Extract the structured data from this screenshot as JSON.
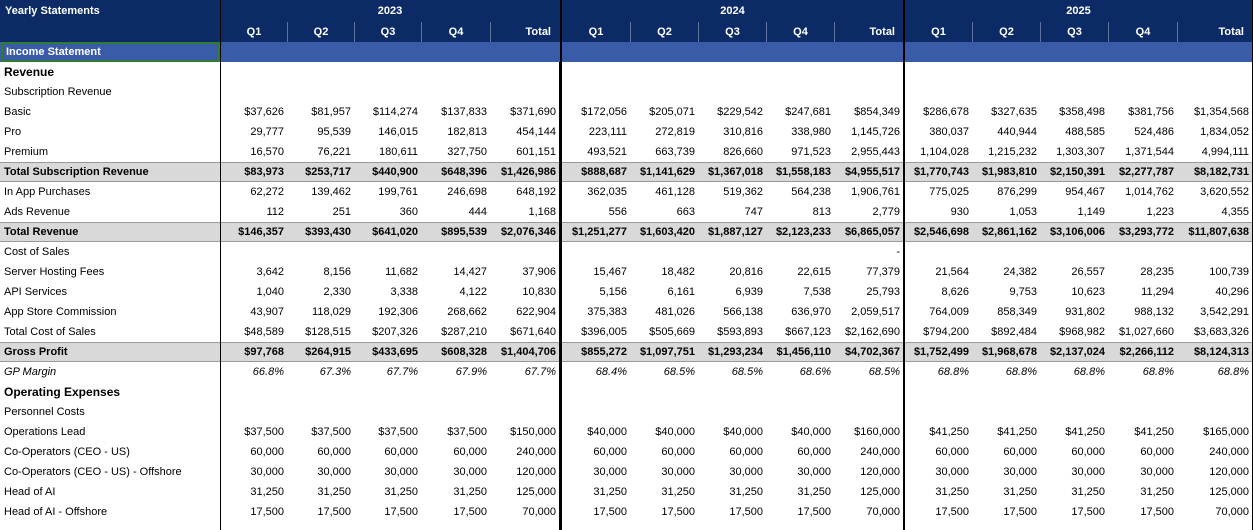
{
  "title": "Yearly Statements",
  "section": "Income Statement",
  "colors": {
    "header_bg": "#0c2b66",
    "band_bg": "#3a5ba8",
    "shade": "#d9d9d9",
    "selection": "#2e7d32"
  },
  "years": [
    "2023",
    "2024",
    "2025"
  ],
  "columns": [
    "Q1",
    "Q2",
    "Q3",
    "Q4",
    "Total"
  ],
  "rows": [
    {
      "label": "Revenue",
      "style": "heading",
      "values": []
    },
    {
      "label": "Subscription Revenue",
      "style": "plain",
      "values": []
    },
    {
      "label": "Basic",
      "style": "plain",
      "values": [
        "$37,626",
        "$81,957",
        "$114,274",
        "$137,833",
        "$371,690",
        "$172,056",
        "$205,071",
        "$229,542",
        "$247,681",
        "$854,349",
        "$286,678",
        "$327,635",
        "$358,498",
        "$381,756",
        "$1,354,568"
      ]
    },
    {
      "label": "Pro",
      "style": "plain",
      "values": [
        "29,777",
        "95,539",
        "146,015",
        "182,813",
        "454,144",
        "223,111",
        "272,819",
        "310,816",
        "338,980",
        "1,145,726",
        "380,037",
        "440,944",
        "488,585",
        "524,486",
        "1,834,052"
      ]
    },
    {
      "label": "Premium",
      "style": "plain",
      "values": [
        "16,570",
        "76,221",
        "180,611",
        "327,750",
        "601,151",
        "493,521",
        "663,739",
        "826,660",
        "971,523",
        "2,955,443",
        "1,104,028",
        "1,215,232",
        "1,303,307",
        "1,371,544",
        "4,994,111"
      ]
    },
    {
      "label": "Total Subscription Revenue",
      "style": "total",
      "values": [
        "$83,973",
        "$253,717",
        "$440,900",
        "$648,396",
        "$1,426,986",
        "$888,687",
        "$1,141,629",
        "$1,367,018",
        "$1,558,183",
        "$4,955,517",
        "$1,770,743",
        "$1,983,810",
        "$2,150,391",
        "$2,277,787",
        "$8,182,731"
      ]
    },
    {
      "label": "In App Purchases",
      "style": "plain",
      "values": [
        "62,272",
        "139,462",
        "199,761",
        "246,698",
        "648,192",
        "362,035",
        "461,128",
        "519,362",
        "564,238",
        "1,906,761",
        "775,025",
        "876,299",
        "954,467",
        "1,014,762",
        "3,620,552"
      ]
    },
    {
      "label": "Ads Revenue",
      "style": "plain",
      "values": [
        "112",
        "251",
        "360",
        "444",
        "1,168",
        "556",
        "663",
        "747",
        "813",
        "2,779",
        "930",
        "1,053",
        "1,149",
        "1,223",
        "4,355"
      ]
    },
    {
      "label": "Total Revenue",
      "style": "total",
      "values": [
        "$146,357",
        "$393,430",
        "$641,020",
        "$895,539",
        "$2,076,346",
        "$1,251,277",
        "$1,603,420",
        "$1,887,127",
        "$2,123,233",
        "$6,865,057",
        "$2,546,698",
        "$2,861,162",
        "$3,106,006",
        "$3,293,772",
        "$11,807,638"
      ]
    },
    {
      "label": "Cost of Sales",
      "style": "plain",
      "values": [
        "",
        "",
        "",
        "",
        "",
        "",
        "",
        "",
        "",
        "-",
        "",
        "",
        "",
        "",
        ""
      ]
    },
    {
      "label": "Server Hosting Fees",
      "style": "plain",
      "values": [
        "3,642",
        "8,156",
        "11,682",
        "14,427",
        "37,906",
        "15,467",
        "18,482",
        "20,816",
        "22,615",
        "77,379",
        "21,564",
        "24,382",
        "26,557",
        "28,235",
        "100,739"
      ]
    },
    {
      "label": "API Services",
      "style": "plain",
      "values": [
        "1,040",
        "2,330",
        "3,338",
        "4,122",
        "10,830",
        "5,156",
        "6,161",
        "6,939",
        "7,538",
        "25,793",
        "8,626",
        "9,753",
        "10,623",
        "11,294",
        "40,296"
      ]
    },
    {
      "label": "App Store Commission",
      "style": "plain",
      "values": [
        "43,907",
        "118,029",
        "192,306",
        "268,662",
        "622,904",
        "375,383",
        "481,026",
        "566,138",
        "636,970",
        "2,059,517",
        "764,009",
        "858,349",
        "931,802",
        "988,132",
        "3,542,291"
      ]
    },
    {
      "label": "Total Cost of Sales",
      "style": "plain",
      "values": [
        "$48,589",
        "$128,515",
        "$207,326",
        "$287,210",
        "$671,640",
        "$396,005",
        "$505,669",
        "$593,893",
        "$667,123",
        "$2,162,690",
        "$794,200",
        "$892,484",
        "$968,982",
        "$1,027,660",
        "$3,683,326"
      ]
    },
    {
      "label": "Gross Profit",
      "style": "total",
      "values": [
        "$97,768",
        "$264,915",
        "$433,695",
        "$608,328",
        "$1,404,706",
        "$855,272",
        "$1,097,751",
        "$1,293,234",
        "$1,456,110",
        "$4,702,367",
        "$1,752,499",
        "$1,968,678",
        "$2,137,024",
        "$2,266,112",
        "$8,124,313"
      ]
    },
    {
      "label": "GP Margin",
      "style": "italic",
      "values": [
        "66.8%",
        "67.3%",
        "67.7%",
        "67.9%",
        "67.7%",
        "68.4%",
        "68.5%",
        "68.5%",
        "68.6%",
        "68.5%",
        "68.8%",
        "68.8%",
        "68.8%",
        "68.8%",
        "68.8%"
      ]
    },
    {
      "label": "Operating Expenses",
      "style": "heading",
      "values": []
    },
    {
      "label": "Personnel Costs",
      "style": "plain",
      "values": []
    },
    {
      "label": "Operations Lead",
      "style": "plain",
      "values": [
        "$37,500",
        "$37,500",
        "$37,500",
        "$37,500",
        "$150,000",
        "$40,000",
        "$40,000",
        "$40,000",
        "$40,000",
        "$160,000",
        "$41,250",
        "$41,250",
        "$41,250",
        "$41,250",
        "$165,000"
      ]
    },
    {
      "label": "Co-Operators (CEO - US)",
      "style": "plain",
      "values": [
        "60,000",
        "60,000",
        "60,000",
        "60,000",
        "240,000",
        "60,000",
        "60,000",
        "60,000",
        "60,000",
        "240,000",
        "60,000",
        "60,000",
        "60,000",
        "60,000",
        "240,000"
      ]
    },
    {
      "label": "Co-Operators (CEO - US) - Offshore",
      "style": "plain",
      "values": [
        "30,000",
        "30,000",
        "30,000",
        "30,000",
        "120,000",
        "30,000",
        "30,000",
        "30,000",
        "30,000",
        "120,000",
        "30,000",
        "30,000",
        "30,000",
        "30,000",
        "120,000"
      ]
    },
    {
      "label": "Head of AI",
      "style": "plain",
      "values": [
        "31,250",
        "31,250",
        "31,250",
        "31,250",
        "125,000",
        "31,250",
        "31,250",
        "31,250",
        "31,250",
        "125,000",
        "31,250",
        "31,250",
        "31,250",
        "31,250",
        "125,000"
      ]
    },
    {
      "label": "Head of AI - Offshore",
      "style": "plain",
      "values": [
        "17,500",
        "17,500",
        "17,500",
        "17,500",
        "70,000",
        "17,500",
        "17,500",
        "17,500",
        "17,500",
        "70,000",
        "17,500",
        "17,500",
        "17,500",
        "17,500",
        "70,000"
      ]
    }
  ]
}
